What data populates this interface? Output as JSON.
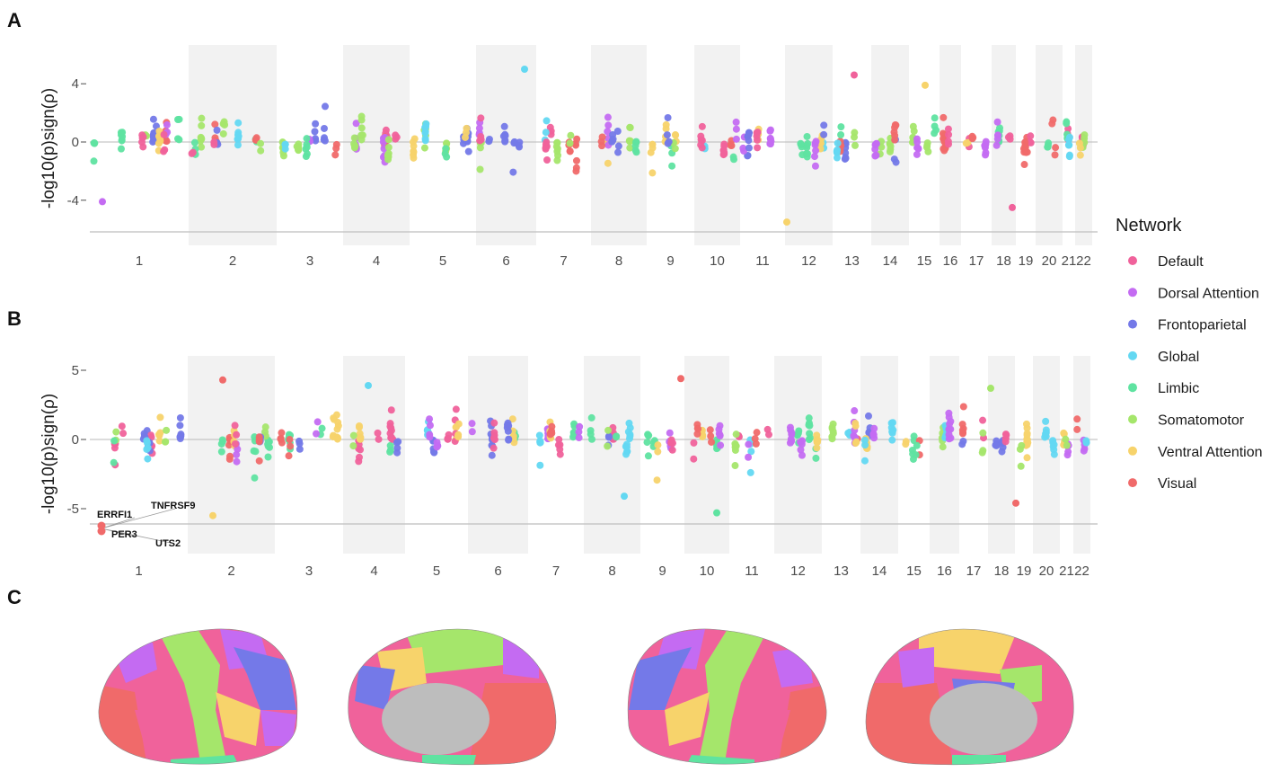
{
  "panels": [
    "A",
    "B",
    "C"
  ],
  "legend": {
    "title": "Network",
    "items": [
      {
        "label": "Default",
        "color": "#F0629B"
      },
      {
        "label": "Dorsal Attention",
        "color": "#C46BF2"
      },
      {
        "label": "Frontoparietal",
        "color": "#7479E8"
      },
      {
        "label": "Global",
        "color": "#63D8F2"
      },
      {
        "label": "Limbic",
        "color": "#5FE3A1"
      },
      {
        "label": "Somatomotor",
        "color": "#A5E66B"
      },
      {
        "label": "Ventral Attention",
        "color": "#F7D36B"
      },
      {
        "label": "Visual",
        "color": "#F06A6A"
      }
    ]
  },
  "chart_data": [
    {
      "type": "scatter",
      "panel": "A",
      "ylabel": "-log10(p)sign(ρ)",
      "yticks": [
        -4,
        0,
        4
      ],
      "ylim": [
        -6.2,
        5.3
      ],
      "threshold": -6.2,
      "x_categories": [
        "1",
        "2",
        "3",
        "4",
        "5",
        "6",
        "7",
        "8",
        "9",
        "10",
        "11",
        "12",
        "13",
        "14",
        "15",
        "16",
        "17",
        "18",
        "19",
        "20",
        "21",
        "22"
      ],
      "range_note": "points per chromosome mostly within -4 to 4; extremes up to 5.0 (chr 6) and down to -5.5 (chr 11)",
      "series": [
        "Default",
        "Dorsal Attention",
        "Frontoparietal",
        "Global",
        "Limbic",
        "Somatomotor",
        "Ventral Attention",
        "Visual"
      ]
    },
    {
      "type": "scatter",
      "panel": "B",
      "ylabel": "-log10(p)sign(ρ)",
      "yticks": [
        -5,
        0,
        5
      ],
      "ylim": [
        -8.2,
        5.9
      ],
      "threshold": -6.2,
      "x_categories": [
        "1",
        "2",
        "3",
        "4",
        "5",
        "6",
        "7",
        "8",
        "9",
        "10",
        "11",
        "12",
        "13",
        "14",
        "15",
        "16",
        "17",
        "18",
        "19",
        "20",
        "21",
        "22"
      ],
      "annotated_genes": [
        "ERRFI1",
        "TNFRSF9",
        "PER3",
        "UTS2"
      ],
      "annotated_value": -6.5,
      "series": [
        "Default",
        "Dorsal Attention",
        "Frontoparietal",
        "Global",
        "Limbic",
        "Somatomotor",
        "Ventral Attention",
        "Visual"
      ]
    }
  ],
  "brain_views": [
    "left-lateral",
    "left-medial",
    "right-lateral",
    "right-medial"
  ]
}
